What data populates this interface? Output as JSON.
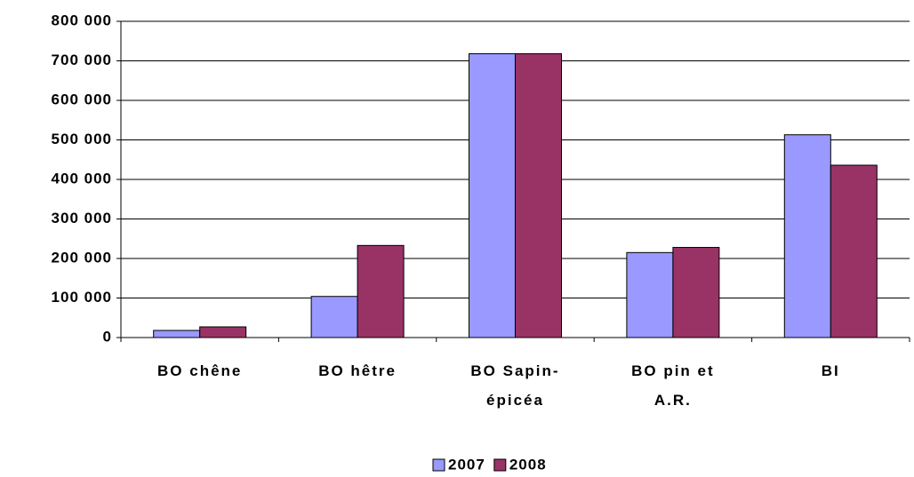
{
  "chart_data": {
    "type": "bar",
    "categories": [
      "BO chêne",
      "BO hêtre",
      "BO Sapin-\népicéa",
      "BO pin et\nA.R.",
      "BI"
    ],
    "series": [
      {
        "name": "2007",
        "color": "#9999ff",
        "values": [
          18000,
          104000,
          718000,
          215000,
          513000
        ]
      },
      {
        "name": "2008",
        "color": "#993366",
        "values": [
          27000,
          233000,
          718000,
          228000,
          436000
        ]
      }
    ],
    "ylim": [
      0,
      800000
    ],
    "yticks": [
      0,
      {
        "value": 100000,
        "label": "100 000"
      },
      {
        "value": 200000,
        "label": "200 000"
      },
      {
        "value": 300000,
        "label": "300 000"
      },
      {
        "value": 400000,
        "label": "400 000"
      },
      {
        "value": 500000,
        "label": "500 000"
      },
      {
        "value": 600000,
        "label": "600 000"
      },
      {
        "value": 700000,
        "label": "700 000"
      },
      {
        "value": 800000,
        "label": "800 000"
      }
    ],
    "grid": true,
    "legend": "bottom"
  }
}
